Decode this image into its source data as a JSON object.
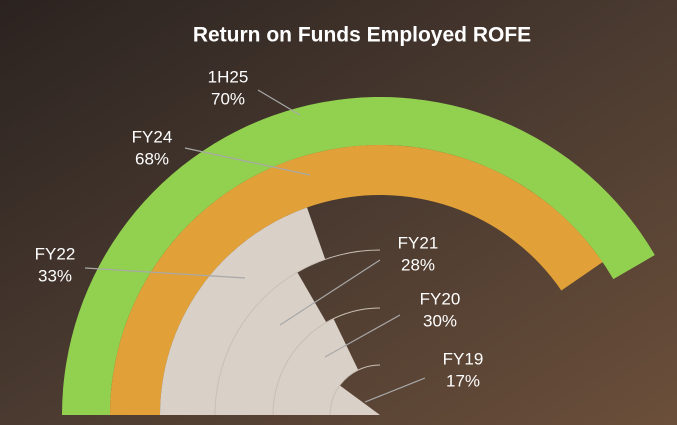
{
  "chart_data": {
    "type": "radial-bar",
    "title": "Return on Funds Employed ROFE",
    "categories": [
      "FY19",
      "FY20",
      "FY21",
      "FY22",
      "FY24",
      "1H25"
    ],
    "values": [
      17,
      30,
      28,
      33,
      68,
      70
    ],
    "value_labels": [
      "17%",
      "30%",
      "28%",
      "33%",
      "68%",
      "70%"
    ],
    "colors": [
      "#d9d0c7",
      "#d9d0c7",
      "#d9d0c7",
      "#d9d0c7",
      "#e2a138",
      "#92d050"
    ]
  }
}
